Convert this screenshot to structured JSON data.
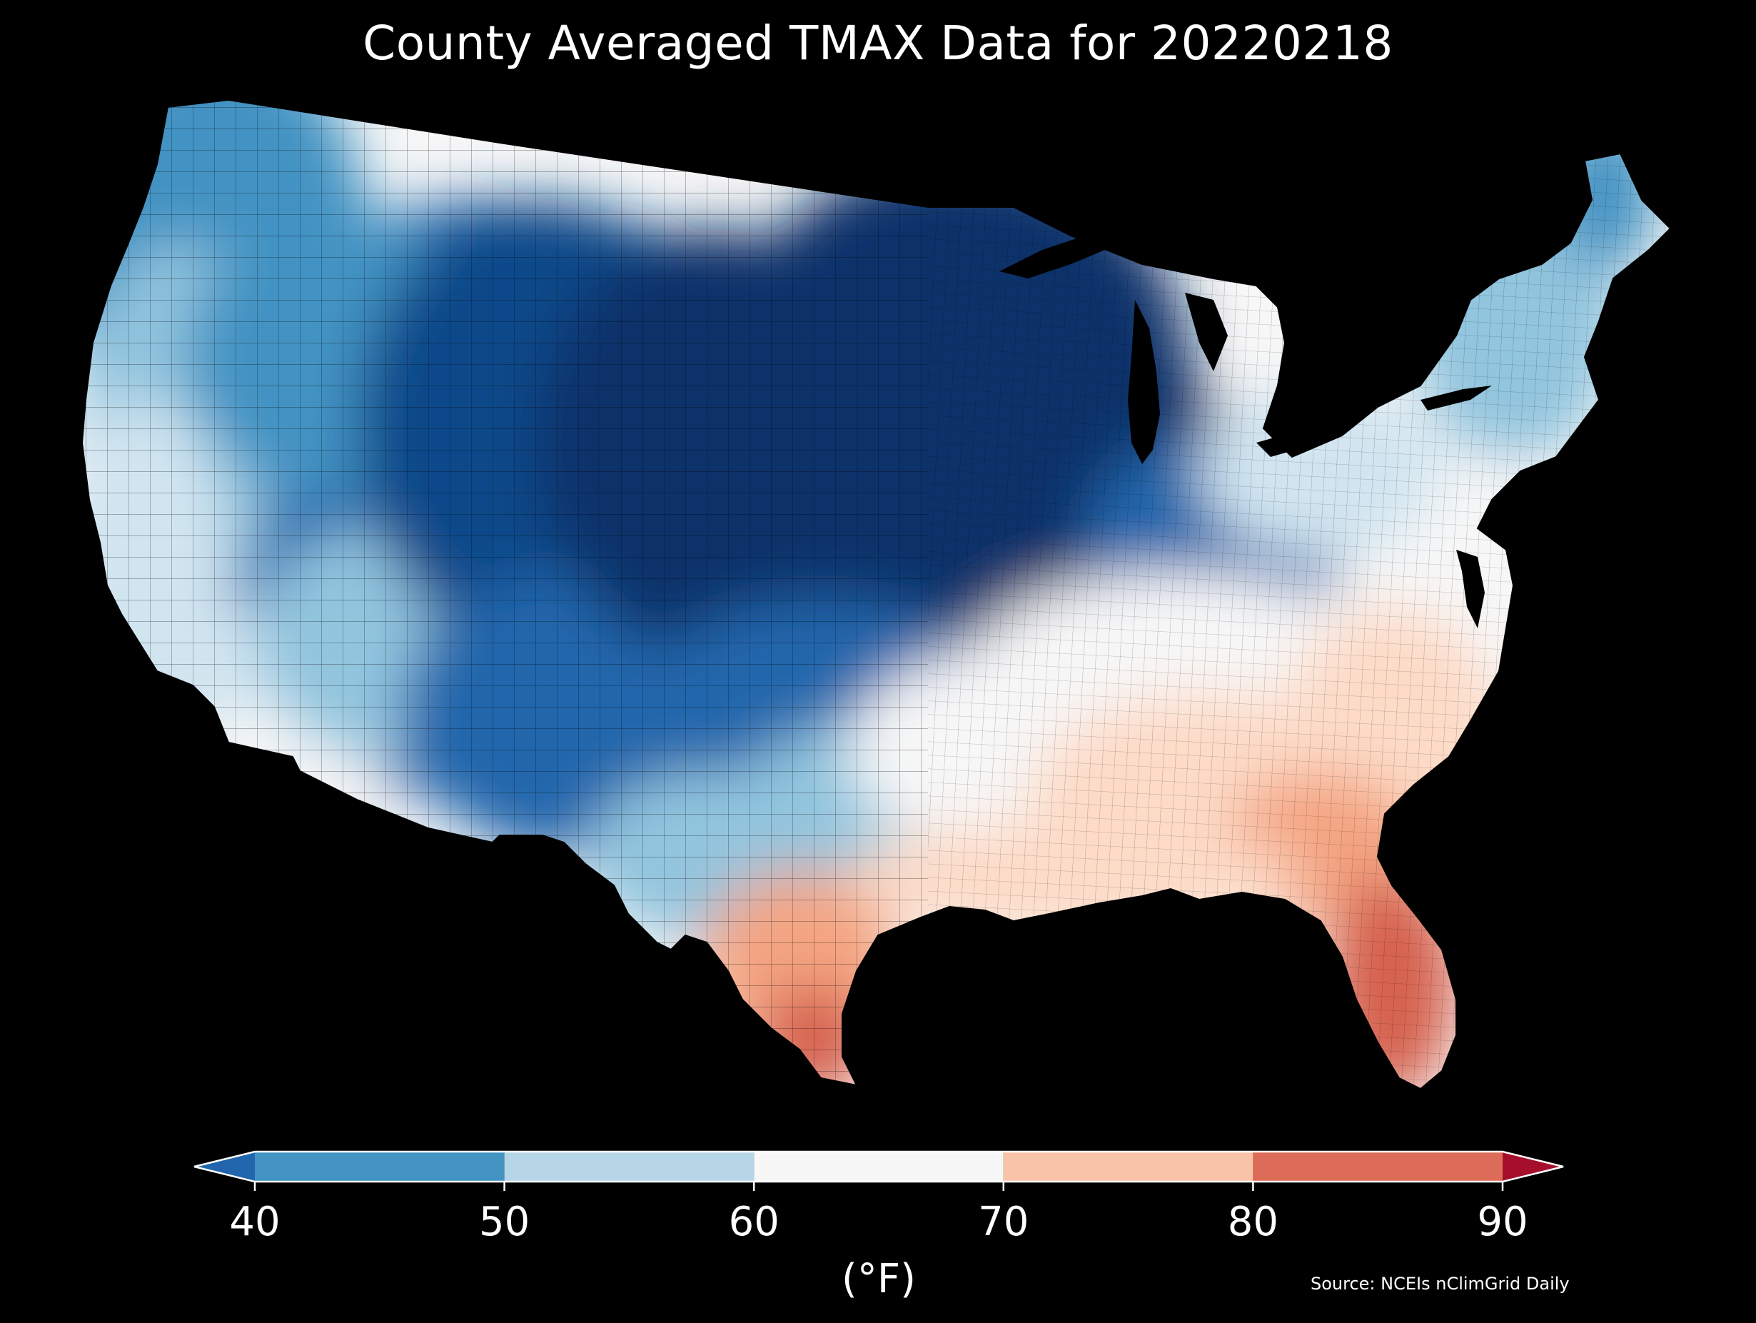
{
  "title": "County Averaged TMAX Data for 20220218",
  "colorbar": {
    "unit_label": "(°F)",
    "ticks": [
      "40",
      "50",
      "60",
      "70",
      "80",
      "90"
    ],
    "bins": [
      {
        "from": 40,
        "to": 50,
        "color": "#4393c3"
      },
      {
        "from": 50,
        "to": 60,
        "color": "#b6d6e8"
      },
      {
        "from": 60,
        "to": 70,
        "color": "#f7f7f7"
      },
      {
        "from": 70,
        "to": 80,
        "color": "#f9c3a8"
      },
      {
        "from": 80,
        "to": 90,
        "color": "#dc6b57"
      }
    ],
    "under_color": "#2166ac",
    "over_color": "#a50f2b"
  },
  "palette": {
    "very_cold": "#08306b",
    "cold_dark": "#0e4a8a",
    "cold": "#2166ac",
    "cool": "#4393c3",
    "cool_light": "#92c5de",
    "mild": "#d1e5f0",
    "neutral": "#f7f7f7",
    "warm_light": "#fddbc7",
    "warm": "#f4a582",
    "hot": "#d6604d",
    "ocean": "#000000"
  },
  "source": "Source: NCEIs nClimGrid Daily"
}
